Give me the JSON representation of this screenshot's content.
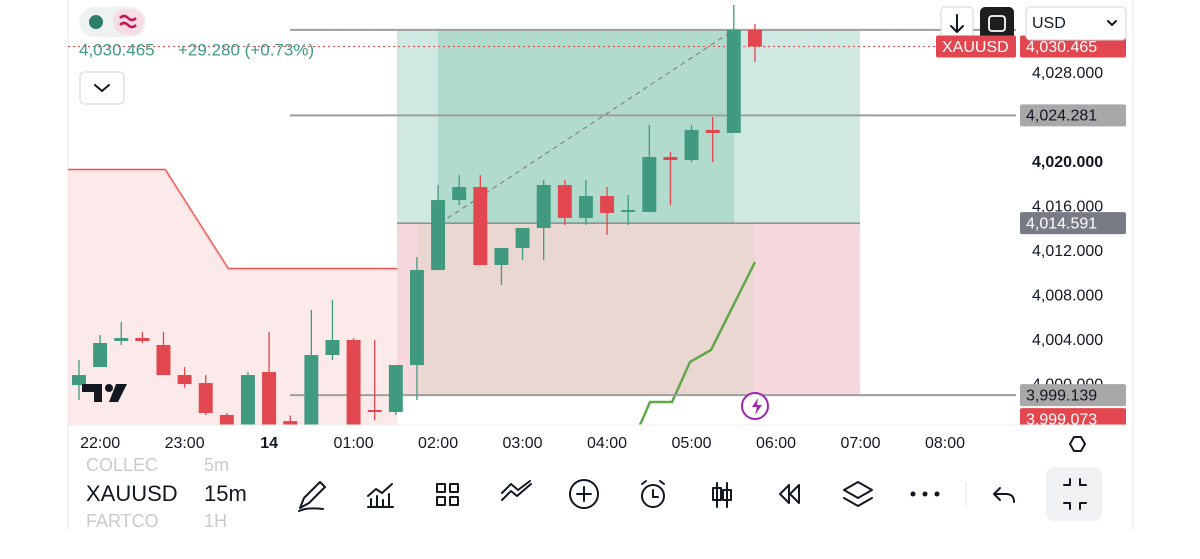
{
  "header": {
    "price": "4,030.465",
    "change": "+29.280 (+0.73%)",
    "currency": "USD"
  },
  "chart": {
    "type": "candlestick",
    "symbol": "XAUUSD",
    "x": [
      21.75,
      22,
      22.25,
      22.5,
      22.75,
      23,
      23.25,
      23.5,
      23.75,
      24,
      24.25,
      24.5,
      24.75,
      25,
      25.25,
      25.5,
      25.75,
      26,
      26.25,
      26.5,
      26.75,
      27,
      27.25,
      27.5,
      27.75,
      28,
      28.25,
      28.5,
      28.75,
      29,
      29.25,
      29.5,
      29.75
    ],
    "open": [
      4000.04,
      4001.66,
      4004.0,
      4004.27,
      4003.64,
      4000.94,
      4000.22,
      3997.35,
      3996.0,
      4001.21,
      3996.8,
      3996.0,
      4002.74,
      4004.09,
      3997.8,
      3997.62,
      4001.84,
      4010.38,
      4016.67,
      4017.84,
      4010.83,
      4012.36,
      4014.16,
      4018.02,
      4015.06,
      4017.03,
      4015.78,
      4015.6,
      4020.54,
      4020.27,
      4022.97,
      4022.7,
      4031.96
    ],
    "high": [
      4002.29,
      4004.54,
      4005.71,
      4004.81,
      4004.81,
      4001.66,
      4000.94,
      3997.53,
      4001.21,
      4004.81,
      3997.3,
      4006.79,
      4007.69,
      4004.27,
      4004.09,
      4001.84,
      4011.55,
      4018.02,
      4018.92,
      4018.92,
      4012.36,
      4014.16,
      4018.47,
      4018.47,
      4018.47,
      4017.84,
      4017.12,
      4023.42,
      4021.0,
      4023.42,
      4024.13,
      4034.2,
      4032.49
    ],
    "low": [
      3998.7,
      4001.66,
      4003.64,
      4003.82,
      4000.94,
      3999.8,
      3997.35,
      3995.5,
      3995.5,
      3995.5,
      3995.2,
      3995.5,
      4002.29,
      3995.5,
      3996.9,
      3997.35,
      3998.7,
      4010.38,
      4016.22,
      4010.83,
      4009.03,
      4011.28,
      4011.28,
      4014.43,
      4014.43,
      4013.53,
      4014.43,
      4015.6,
      4016.22,
      4020.09,
      4020.09,
      4022.7,
      4029.08
    ],
    "close": [
      4000.94,
      4003.82,
      4004.27,
      4004.0,
      4000.94,
      4000.13,
      3997.53,
      3996.0,
      4000.94,
      3996.0,
      3995.6,
      4002.74,
      4004.09,
      3996.0,
      3997.62,
      4001.84,
      4010.38,
      4016.67,
      4017.84,
      4010.83,
      4012.36,
      4014.16,
      4018.02,
      4015.06,
      4017.03,
      4015.51,
      4015.78,
      4020.54,
      4020.27,
      4022.97,
      4022.7,
      4031.96,
      4030.465
    ],
    "up_color": "#3f9a80",
    "down_color": "#e2474f",
    "xlim": [
      21.62,
      32.84
    ],
    "xticks": [
      {
        "value": 22,
        "label": "22:00"
      },
      {
        "value": 23,
        "label": "23:00"
      },
      {
        "value": 24,
        "label": "14"
      },
      {
        "value": 25,
        "label": "01:00"
      },
      {
        "value": 26,
        "label": "02:00"
      },
      {
        "value": 27,
        "label": "03:00"
      },
      {
        "value": 28,
        "label": "04:00"
      },
      {
        "value": 29,
        "label": "05:00"
      },
      {
        "value": 30,
        "label": "06:00"
      },
      {
        "value": 31,
        "label": "07:00"
      },
      {
        "value": 32,
        "label": "08:00"
      }
    ],
    "ylim": [
      3996.45,
      4034.65
    ],
    "yticks": [
      {
        "value": 4028,
        "label": "4,028.000"
      },
      {
        "value": 4020,
        "label": "4,020.000"
      },
      {
        "value": 4016,
        "label": "4,016.000"
      },
      {
        "value": 4012,
        "label": "4,012.000"
      },
      {
        "value": 4008,
        "label": "4,008.000"
      },
      {
        "value": 4004,
        "label": "4,004.000"
      },
      {
        "value": 4000,
        "label": "4,000.000"
      }
    ],
    "target": 4031.96,
    "levels": [
      {
        "value": 4024.281,
        "label": "4,024.281"
      },
      {
        "value": 4014.591,
        "label": "4,014.591"
      },
      {
        "value": 3999.139,
        "label": "3,999.139"
      }
    ],
    "last_price_label": "4,030.465",
    "stop_label": "3,999.073"
  },
  "toolbar": {
    "symbol": "XAUUSD",
    "interval": "15m",
    "ghost_symbols": [
      "COLLEC",
      "FARTCO"
    ],
    "ghost_intervals": [
      "5m",
      "1H"
    ]
  }
}
